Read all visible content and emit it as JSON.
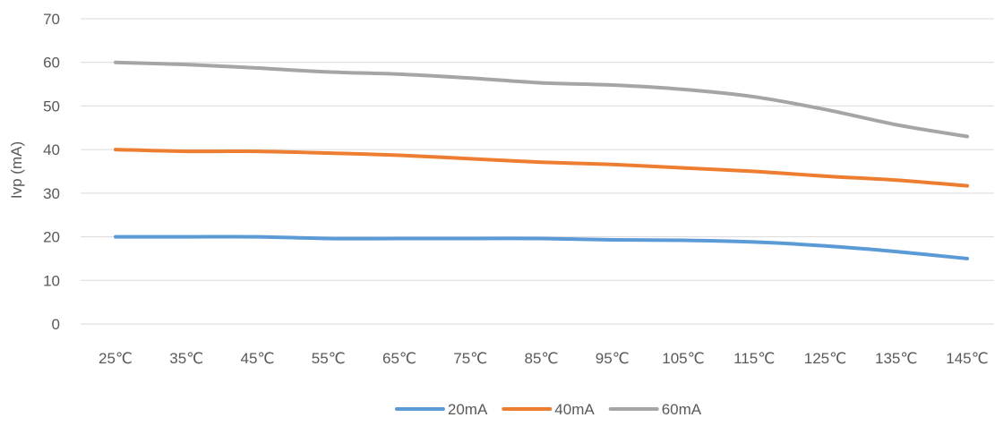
{
  "chart_data": {
    "type": "line",
    "title": "",
    "xlabel": "",
    "ylabel": "Ivp (mA)",
    "ylim": [
      0,
      70
    ],
    "yticks": [
      "0",
      "10",
      "20",
      "30",
      "40",
      "50",
      "60",
      "70"
    ],
    "categories": [
      "25℃",
      "35℃",
      "45℃",
      "55℃",
      "65℃",
      "75℃",
      "85℃",
      "95℃",
      "105℃",
      "115℃",
      "125℃",
      "135℃",
      "145℃"
    ],
    "grid": true,
    "legend_position": "bottom",
    "series": [
      {
        "name": "20mA",
        "color": "#5b9bd5",
        "values": [
          20,
          20,
          20,
          19.6,
          19.6,
          19.6,
          19.6,
          19.3,
          19.2,
          18.8,
          17.9,
          16.6,
          15
        ]
      },
      {
        "name": "40mA",
        "color": "#ed7d31",
        "values": [
          40,
          39.6,
          39.6,
          39.2,
          38.7,
          37.9,
          37.1,
          36.6,
          35.8,
          35,
          33.9,
          33,
          31.7
        ]
      },
      {
        "name": "60mA",
        "color": "#a5a5a5",
        "values": [
          60,
          59.5,
          58.7,
          57.8,
          57.3,
          56.4,
          55.3,
          54.8,
          53.8,
          52.1,
          49.2,
          45.7,
          43
        ]
      }
    ]
  }
}
